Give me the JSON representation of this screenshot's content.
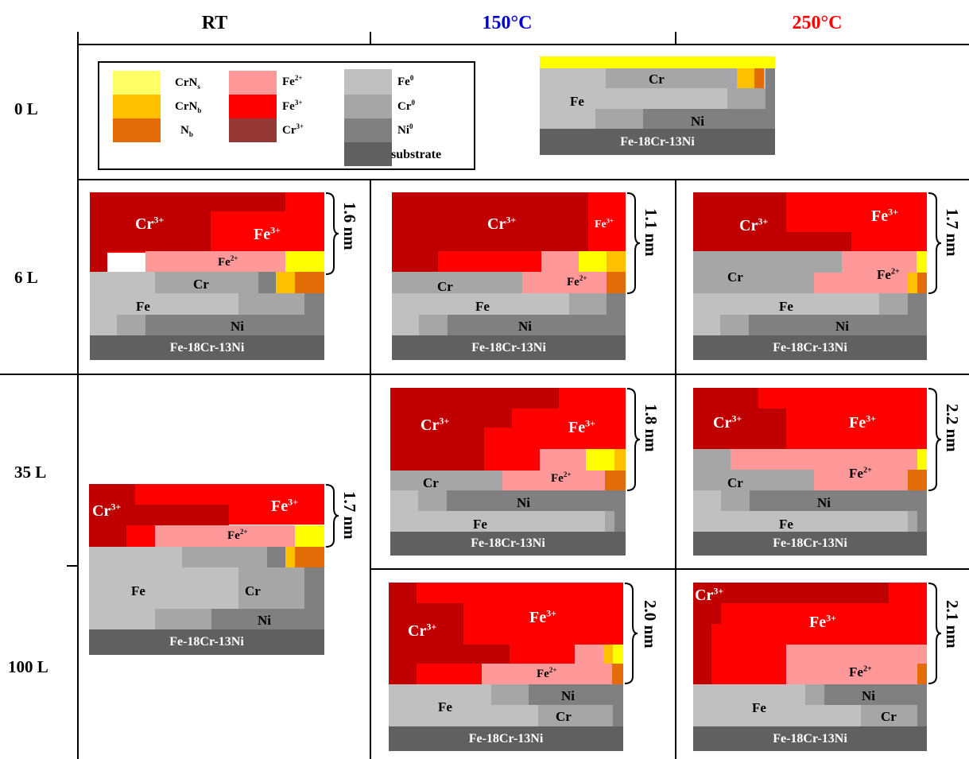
{
  "colors": {
    "CrNs": "#ffff33",
    "CrNb": "#ffc000",
    "Nb": "#e36c09",
    "Fe2": "#ff9999",
    "Fe3": "#ff0000",
    "Cr3": "#c00000",
    "Fe0": "#c0c0c0",
    "Cr0": "#a6a6a6",
    "Ni0": "#808080",
    "substrate": "#606060",
    "header150": "#0000cc",
    "header250": "#ff0000"
  },
  "headers": {
    "rt": "RT",
    "t150": "150°C",
    "t250": "250°C"
  },
  "rows": {
    "r0": "0 L",
    "r6": "6 L",
    "r35": "35 L",
    "r100": "100 L"
  },
  "legend": {
    "crns": "CrN",
    "crns_sub": "s",
    "crnb": "CrN",
    "crnb_sub": "b",
    "nb": "N",
    "nb_sub": "b",
    "fe2": "Fe",
    "fe2_sup": "2+",
    "fe3": "Fe",
    "fe3_sup": "3+",
    "cr3": "Cr",
    "cr3_sup": "3+",
    "fe0": "Fe",
    "fe0_sup": "0",
    "cr0": "Cr",
    "cr0_sup": "0",
    "ni0": "Ni",
    "ni0_sup": "0",
    "substrate": "substrate"
  },
  "labels": {
    "fe": "Fe",
    "cr": "Cr",
    "ni": "Ni",
    "cr3": "Cr",
    "fe3": "Fe",
    "fe2": "Fe",
    "sup3": "3+",
    "sup2": "2+",
    "alloy": "Fe-18Cr-13Ni"
  },
  "thickness": {
    "rt6": "1.6 nm",
    "t150_6": "1.1 nm",
    "t250_6": "1.7 nm",
    "rt35": "1.7 nm",
    "t150_35": "1.8 nm",
    "t250_35": "2.2 nm",
    "t150_100": "2.0 nm",
    "t250_100": "2.1 nm"
  }
}
